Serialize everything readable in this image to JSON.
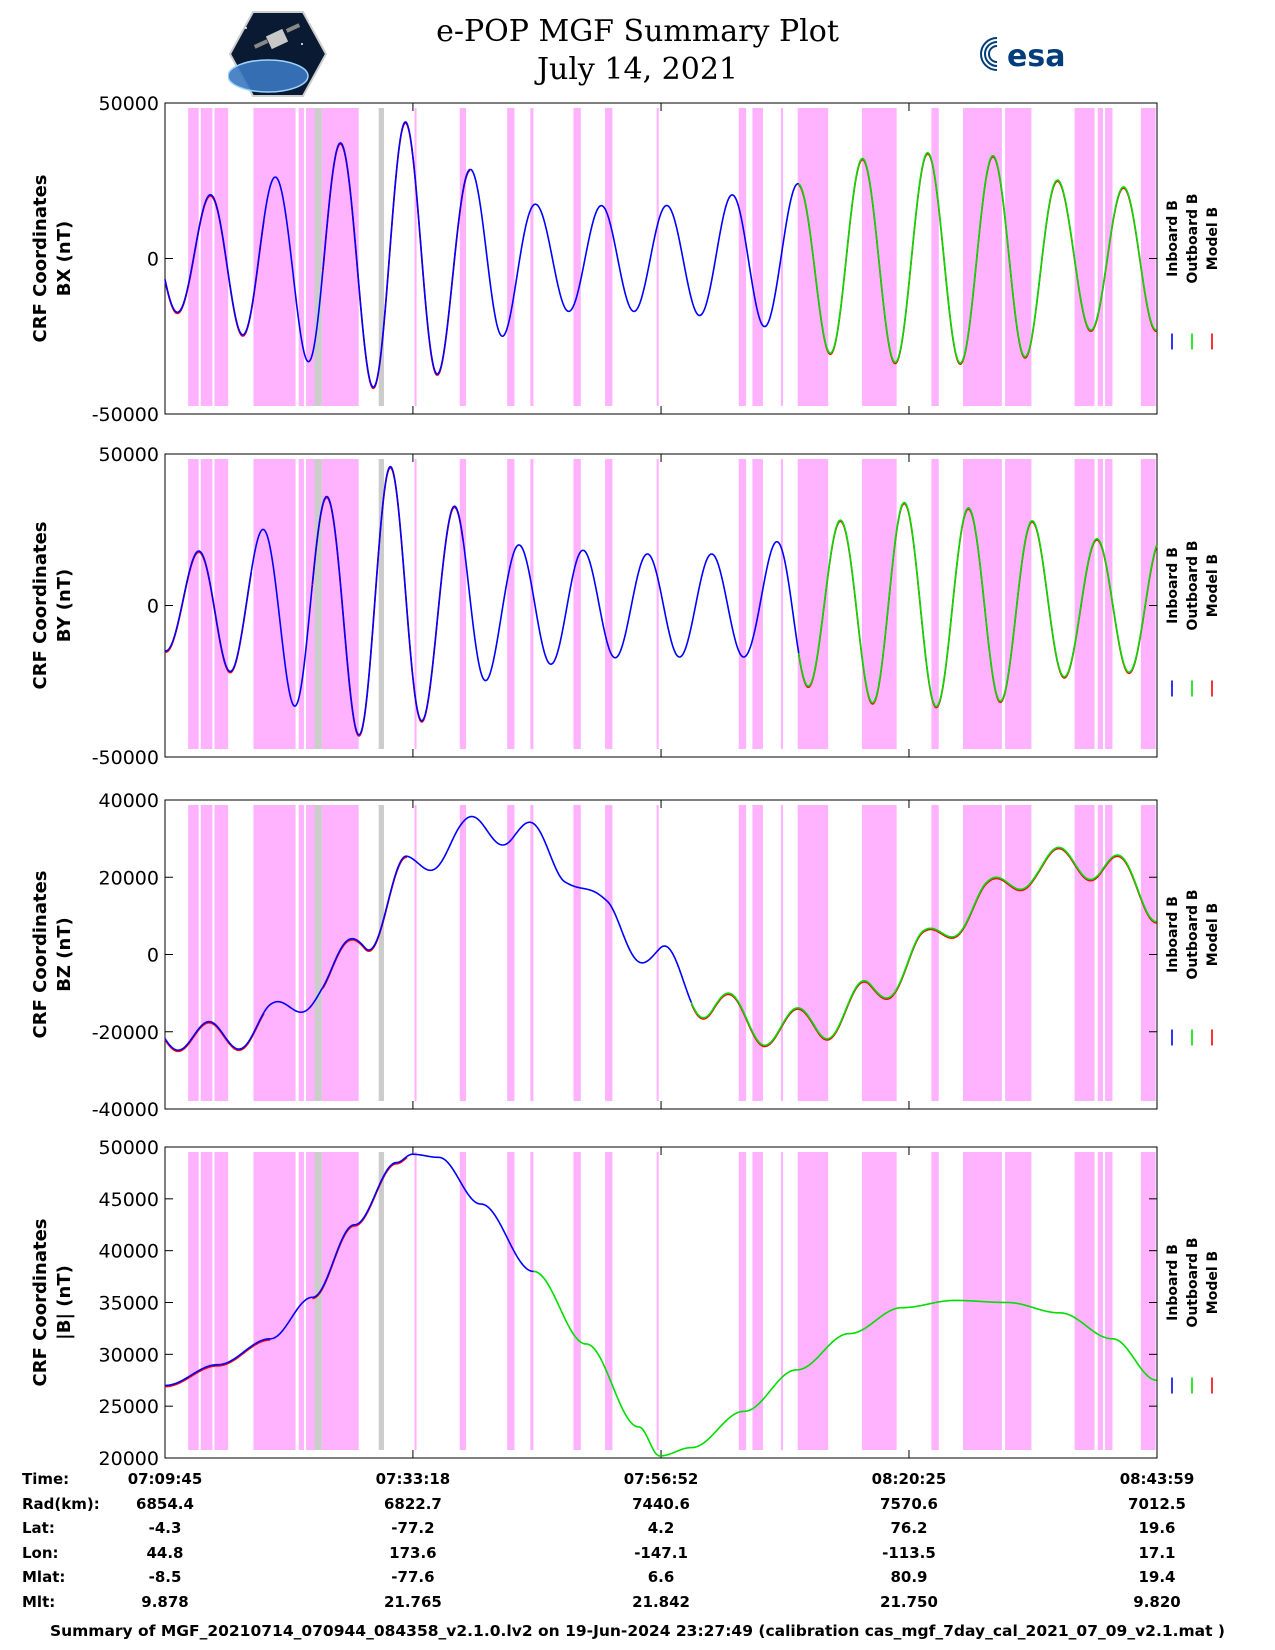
{
  "title": "e-POP MGF Summary Plot",
  "date": "July 14, 2021",
  "logos": {
    "left": "cassiope-logo",
    "right_text": "esa"
  },
  "colors": {
    "inboard": "#0000ff",
    "outboard": "#00dd00",
    "model": "#ff0000",
    "shade": "#ffb3ff",
    "gray": "#cccccc"
  },
  "legend": {
    "inboard": "Inboard B",
    "outboard": "Outboard B",
    "model": "Model B"
  },
  "chart_data": [
    {
      "type": "line",
      "ylabel_line1": "CRF Coordinates",
      "ylabel_line2": "BX (nT)",
      "ylim": [
        -50000,
        50000
      ],
      "yticks": [
        -50000,
        0,
        50000
      ],
      "yticklabels": [
        "-50000",
        "0",
        "50000"
      ],
      "x_minutes": [
        0,
        23.55,
        47.12,
        70.67,
        94.23
      ],
      "waveform": {
        "period_min": 6.2,
        "phase_min": 2.7,
        "offset": 0,
        "amplitude_knots_min": [
          0,
          10,
          16,
          22.5,
          30,
          36,
          47,
          58,
          65,
          72,
          80,
          87,
          94.23
        ],
        "amplitude_knots_nT": [
          17000,
          26000,
          37000,
          44000,
          28000,
          17000,
          17000,
          22000,
          32000,
          34000,
          33000,
          23000,
          23000
        ]
      },
      "segments": [
        {
          "from_min": 0,
          "to_min": 9.4,
          "series": [
            "model",
            "inboard"
          ]
        },
        {
          "from_min": 9.4,
          "to_min": 15.0,
          "series": [
            "inboard"
          ]
        },
        {
          "from_min": 15.0,
          "to_min": 29.0,
          "series": [
            "model",
            "inboard"
          ]
        },
        {
          "from_min": 29.0,
          "to_min": 60.2,
          "series": [
            "inboard"
          ]
        },
        {
          "from_min": 60.2,
          "to_min": 94.23,
          "series": [
            "model",
            "outboard"
          ]
        }
      ]
    },
    {
      "type": "line",
      "ylabel_line1": "CRF Coordinates",
      "ylabel_line2": "BY (nT)",
      "ylim": [
        -50000,
        50000
      ],
      "yticks": [
        -50000,
        0,
        50000
      ],
      "yticklabels": [
        "-50000",
        "0",
        "50000"
      ],
      "x_minutes": [
        0,
        23.55,
        47.12,
        70.67,
        94.23
      ],
      "waveform": {
        "period_min": 6.1,
        "phase_min": 1.6,
        "offset": 0,
        "amplitude_knots_min": [
          0,
          7,
          14,
          21,
          27,
          33,
          45,
          55,
          62,
          70,
          78,
          88,
          94.23
        ],
        "amplitude_knots_nT": [
          15000,
          22000,
          35000,
          46000,
          33000,
          20000,
          17000,
          17000,
          27000,
          34000,
          32000,
          22000,
          22000
        ]
      },
      "segments": [
        {
          "from_min": 0,
          "to_min": 8.2,
          "series": [
            "model",
            "inboard"
          ]
        },
        {
          "from_min": 8.2,
          "to_min": 14.0,
          "series": [
            "inboard"
          ]
        },
        {
          "from_min": 14.0,
          "to_min": 28.3,
          "series": [
            "model",
            "inboard"
          ]
        },
        {
          "from_min": 28.3,
          "to_min": 60.2,
          "series": [
            "inboard"
          ]
        },
        {
          "from_min": 60.2,
          "to_min": 94.23,
          "series": [
            "model",
            "outboard"
          ]
        }
      ]
    },
    {
      "type": "line",
      "ylabel_line1": "CRF Coordinates",
      "ylabel_line2": "BZ (nT)",
      "ylim": [
        -40000,
        40000
      ],
      "yticks": [
        -40000,
        -20000,
        0,
        20000,
        40000
      ],
      "yticklabels": [
        "-40000",
        "-20000",
        "0",
        "20000",
        "40000"
      ],
      "x_minutes": [
        0,
        23.55,
        47.12,
        70.67,
        94.23
      ],
      "trend_knots_min": [
        0,
        5,
        10,
        15,
        19,
        23,
        28,
        33,
        38,
        42,
        47,
        52,
        57,
        62,
        67,
        72,
        78,
        83,
        89,
        94.23
      ],
      "trend_knots_nT": [
        -20000,
        -22000,
        -17000,
        -8000,
        5000,
        21000,
        31000,
        33000,
        23000,
        10000,
        -2000,
        -13000,
        -19000,
        -18000,
        -11000,
        2000,
        15000,
        23000,
        24000,
        13000
      ],
      "ripple": {
        "period_min": 6.2,
        "phase_min": 2.7,
        "amplitude_nT": 4500
      },
      "segments": [
        {
          "from_min": 0,
          "to_min": 9.4,
          "series": [
            "model",
            "inboard"
          ]
        },
        {
          "from_min": 9.4,
          "to_min": 15.0,
          "series": [
            "inboard"
          ]
        },
        {
          "from_min": 15.0,
          "to_min": 23.0,
          "series": [
            "model",
            "inboard"
          ]
        },
        {
          "from_min": 23.0,
          "to_min": 50.0,
          "series": [
            "inboard"
          ]
        },
        {
          "from_min": 50.0,
          "to_min": 94.23,
          "series": [
            "model",
            "outboard"
          ]
        }
      ]
    },
    {
      "type": "line",
      "ylabel_line1": "CRF Coordinates",
      "ylabel_line2": "|B| (nT)",
      "ylim": [
        20000,
        50000
      ],
      "yticks": [
        20000,
        25000,
        30000,
        35000,
        40000,
        45000,
        50000
      ],
      "yticklabels": [
        "20000",
        "25000",
        "30000",
        "35000",
        "40000",
        "45000",
        "50000"
      ],
      "x_minutes": [
        0,
        23.55,
        47.12,
        70.67,
        94.23
      ],
      "trend_knots_min": [
        0,
        5,
        10,
        14,
        18,
        22,
        23.5,
        26,
        30,
        35,
        40,
        45,
        47,
        50,
        55,
        60,
        65,
        70,
        75,
        80,
        85,
        90,
        94.23
      ],
      "trend_knots_nT": [
        27000,
        29000,
        31500,
        35500,
        42500,
        48500,
        49300,
        49000,
        44500,
        38000,
        31000,
        23000,
        20200,
        21000,
        24500,
        28500,
        32000,
        34500,
        35200,
        35000,
        34000,
        31500,
        27500
      ],
      "segments": [
        {
          "from_min": 0,
          "to_min": 10.0,
          "series": [
            "model",
            "inboard"
          ]
        },
        {
          "from_min": 10.0,
          "to_min": 14.0,
          "series": [
            "inboard"
          ]
        },
        {
          "from_min": 14.0,
          "to_min": 23.0,
          "series": [
            "model",
            "inboard"
          ]
        },
        {
          "from_min": 23.0,
          "to_min": 35.0,
          "series": [
            "inboard"
          ]
        },
        {
          "from_min": 35.0,
          "to_min": 94.23,
          "series": [
            "outboard"
          ]
        }
      ]
    }
  ],
  "shaded_intervals_min": [
    [
      2.2,
      3.2
    ],
    [
      3.4,
      4.5
    ],
    [
      4.7,
      6.0
    ],
    [
      8.4,
      12.4
    ],
    [
      12.7,
      13.2
    ],
    [
      13.4,
      14.2
    ],
    [
      14.9,
      18.4
    ],
    [
      23.7,
      23.9
    ],
    [
      28.0,
      28.6
    ],
    [
      32.5,
      33.2
    ],
    [
      34.7,
      35.0
    ],
    [
      38.8,
      39.5
    ],
    [
      41.8,
      42.5
    ],
    [
      46.7,
      46.9
    ],
    [
      54.5,
      55.2
    ],
    [
      55.8,
      56.8
    ],
    [
      58.5,
      58.7
    ],
    [
      60.1,
      63.0
    ],
    [
      66.2,
      69.5
    ],
    [
      72.8,
      73.5
    ],
    [
      75.8,
      79.5
    ],
    [
      79.8,
      82.3
    ],
    [
      86.4,
      88.3
    ],
    [
      88.6,
      89.1
    ],
    [
      89.3,
      90.0
    ],
    [
      92.7,
      94.1
    ]
  ],
  "gray_intervals_min": [
    [
      14.2,
      14.9
    ],
    [
      20.3,
      20.8
    ]
  ],
  "info_rows": [
    {
      "label": "Time:",
      "values": [
        "07:09:45",
        "07:33:18",
        "07:56:52",
        "08:20:25",
        "08:43:59"
      ]
    },
    {
      "label": "Rad(km):",
      "values": [
        "6854.4",
        "6822.7",
        "7440.6",
        "7570.6",
        "7012.5"
      ]
    },
    {
      "label": "Lat:",
      "values": [
        "-4.3",
        "-77.2",
        "4.2",
        "76.2",
        "19.6"
      ]
    },
    {
      "label": "Lon:",
      "values": [
        "44.8",
        "173.6",
        "-147.1",
        "-113.5",
        "17.1"
      ]
    },
    {
      "label": "Mlat:",
      "values": [
        "-8.5",
        "-77.6",
        "6.6",
        "80.9",
        "19.4"
      ]
    },
    {
      "label": "Mlt:",
      "values": [
        "9.878",
        "21.765",
        "21.842",
        "21.750",
        "9.820"
      ]
    }
  ],
  "footer": "Summary of MGF_20210714_070944_084358_v2.1.0.lv2 on 19-Jun-2024 23:27:49 (calibration cas_mgf_7day_cal_2021_07_09_v2.1.mat )"
}
